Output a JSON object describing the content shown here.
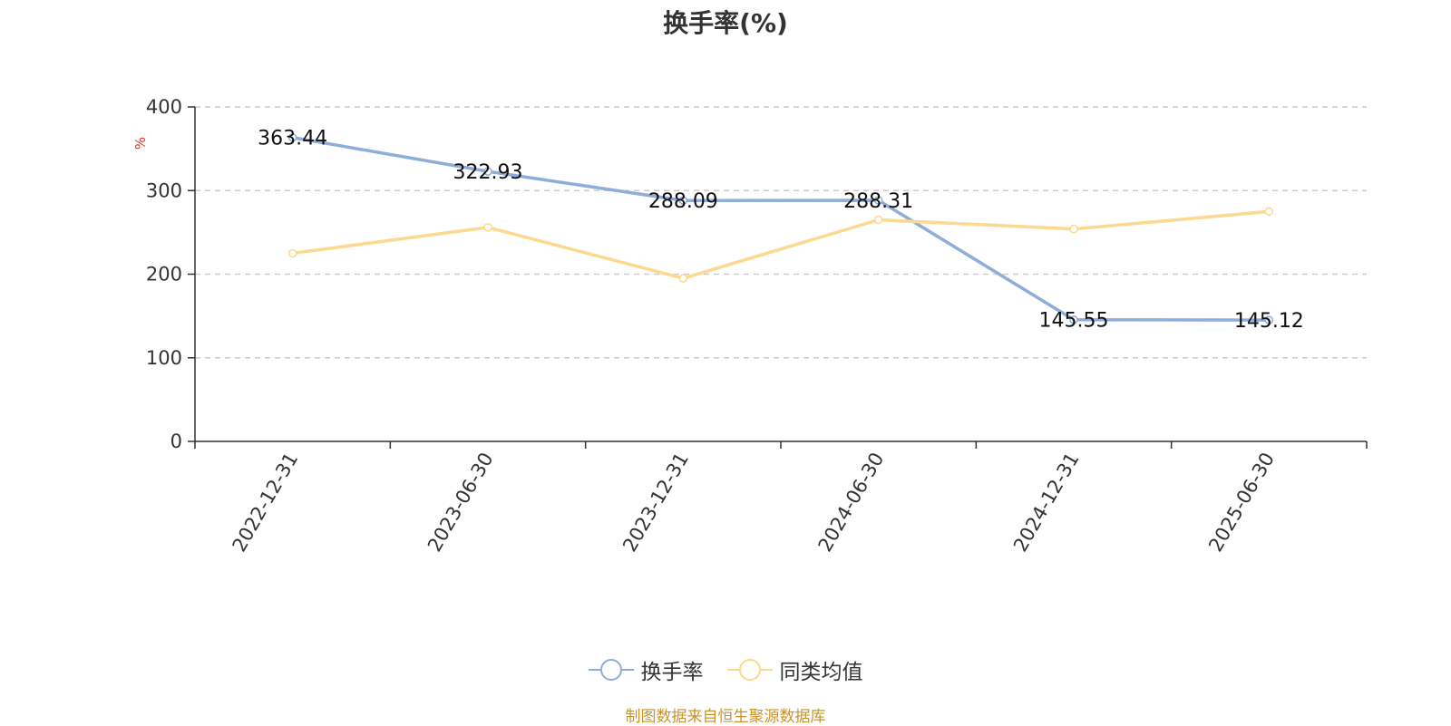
{
  "chart_data": {
    "type": "line",
    "title": "换手率(%)",
    "ylabel": "%",
    "categories": [
      "2022-12-31",
      "2023-06-30",
      "2023-12-31",
      "2024-06-30",
      "2024-12-31",
      "2025-06-30"
    ],
    "ylim": [
      0,
      400
    ],
    "yticks": [
      0,
      100,
      200,
      300,
      400
    ],
    "grid": "horizontal dashed",
    "legend_position": "bottom",
    "series": [
      {
        "name": "换手率",
        "values": [
          363.44,
          322.93,
          288.09,
          288.31,
          145.55,
          145.12
        ],
        "labels": [
          "363.44",
          "322.93",
          "288.09",
          "288.31",
          "145.55",
          "145.12"
        ],
        "color": "#8eadd9"
      },
      {
        "name": "同类均值",
        "values": [
          225,
          256,
          195,
          265,
          254,
          275
        ],
        "color": "#fcd98e"
      }
    ],
    "source": "制图数据来自恒生聚源数据库"
  },
  "colors": {
    "unit": "#e8341c",
    "source": "#c9942a",
    "axis": "#333333",
    "grid": "#cccccc"
  }
}
